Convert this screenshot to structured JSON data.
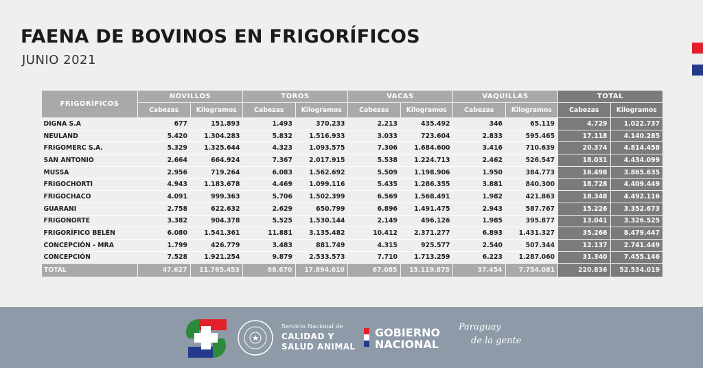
{
  "header": {
    "title": "FAENA DE BOVINOS EN FRIGORÍFICOS",
    "subtitle": "JUNIO 2021"
  },
  "colors": {
    "red": "#e2202a",
    "blue": "#233a8c",
    "green": "#2d8a3a",
    "footer": "#8e9aa8",
    "header_gray": "#a9a9a9",
    "total_gray": "#7b7b7b"
  },
  "table": {
    "first_header": "FRIGORÍFICOS",
    "groups": [
      "NOVILLOS",
      "TOROS",
      "VACAS",
      "VAQUILLAS",
      "TOTAL"
    ],
    "subheaders": [
      "Cabezas",
      "Kilogramos"
    ],
    "rows": [
      [
        "DIGNA S.A",
        "677",
        "151.893",
        "1.493",
        "370.233",
        "2.213",
        "435.492",
        "346",
        "65.119",
        "4.729",
        "1.022.737"
      ],
      [
        "NEULAND",
        "5.420",
        "1.304.283",
        "5.832",
        "1.516.933",
        "3.033",
        "723.604",
        "2.833",
        "595.465",
        "17.118",
        "4.140.285"
      ],
      [
        "FRIGOMERC S.A.",
        "5.329",
        "1.325.644",
        "4.323",
        "1.093.575",
        "7.306",
        "1.684.600",
        "3.416",
        "710.639",
        "20.374",
        "4.814.458"
      ],
      [
        "SAN ANTONIO",
        "2.664",
        "664.924",
        "7.367",
        "2.017.915",
        "5.538",
        "1.224.713",
        "2.462",
        "526.547",
        "18.031",
        "4.434.099"
      ],
      [
        "MUSSA",
        "2.956",
        "719.264",
        "6.083",
        "1.562.692",
        "5.509",
        "1.198.906",
        "1.950",
        "384.773",
        "16.498",
        "3.865.635"
      ],
      [
        "FRIGOCHORTI",
        "4.943",
        "1.183.678",
        "4.469",
        "1.099.116",
        "5.435",
        "1.286.355",
        "3.881",
        "840.300",
        "18.728",
        "4.409.449"
      ],
      [
        "FRIGOCHACO",
        "4.091",
        "999.363",
        "5.706",
        "1.502.399",
        "6.569",
        "1.568.491",
        "1.982",
        "421.863",
        "18.348",
        "4.492.116"
      ],
      [
        "GUARANI",
        "2.758",
        "622.632",
        "2.629",
        "650.799",
        "6.896",
        "1.491.475",
        "2.943",
        "587.767",
        "15.226",
        "3.352.673"
      ],
      [
        "FRIGONORTE",
        "3.382",
        "904.378",
        "5.525",
        "1.530.144",
        "2.149",
        "496.126",
        "1.985",
        "395.877",
        "13.041",
        "3.326.525"
      ],
      [
        "FRIGORÍFICO BELÉN",
        "6.080",
        "1.541.361",
        "11.881",
        "3.135.482",
        "10.412",
        "2.371.277",
        "6.893",
        "1.431.327",
        "35.266",
        "8.479.447"
      ],
      [
        "CONCEPCIÓN - MRA",
        "1.799",
        "426.779",
        "3.483",
        "881.749",
        "4.315",
        "925.577",
        "2.540",
        "507.344",
        "12.137",
        "2.741.449"
      ],
      [
        "CONCEPCIÓN",
        "7.528",
        "1.921.254",
        "9.879",
        "2.533.573",
        "7.710",
        "1.713.259",
        "6.223",
        "1.287.060",
        "31.340",
        "7.455.146"
      ]
    ],
    "total": [
      "TOTAL",
      "47.627",
      "11.765.453",
      "68.670",
      "17.894.610",
      "67.085",
      "15.119.875",
      "37.454",
      "7.754.081",
      "220.836",
      "52.534.019"
    ]
  },
  "footer": {
    "senacsa_small": "Servicio Nacional de",
    "senacsa_line1": "CALIDAD Y",
    "senacsa_line2": "SALUD ANIMAL",
    "seal_text": "REPÚBLICA DEL PARAGUAY",
    "gob_line1": "GOBIERNO",
    "gob_line2": "NACIONAL",
    "slogan_line1": "Paraguay",
    "slogan_line2": "de la gente"
  }
}
